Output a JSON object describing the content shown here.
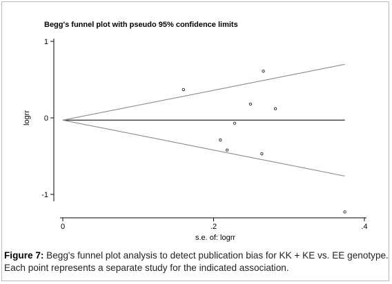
{
  "chart_data": {
    "type": "scatter",
    "title": "Begg's funnel plot with pseudo 95% confidence limits",
    "xlabel": "s.e. of: logrr",
    "ylabel": "logrr",
    "xlim": [
      0,
      0.4
    ],
    "ylim": [
      -1,
      1
    ],
    "x_ticks": [
      0,
      0.2,
      0.4
    ],
    "x_tick_labels": [
      "0",
      ".2",
      ".4"
    ],
    "y_ticks": [
      1,
      0,
      -1
    ],
    "y_tick_labels": [
      "1",
      "0",
      "-1"
    ],
    "grid": false,
    "pooled_estimate": -0.03,
    "confidence_limits": {
      "x": [
        0,
        0.374
      ],
      "upper": [
        -0.03,
        0.7
      ],
      "lower": [
        -0.03,
        -0.76
      ]
    },
    "points": [
      {
        "x": 0.16,
        "y": 0.37
      },
      {
        "x": 0.249,
        "y": 0.18
      },
      {
        "x": 0.266,
        "y": 0.61
      },
      {
        "x": 0.282,
        "y": 0.12
      },
      {
        "x": 0.228,
        "y": -0.07
      },
      {
        "x": 0.209,
        "y": -0.29
      },
      {
        "x": 0.218,
        "y": -0.42
      },
      {
        "x": 0.264,
        "y": -0.47
      },
      {
        "x": 0.374,
        "y": -1.23
      }
    ]
  },
  "caption": {
    "label": "Figure 7:",
    "text": " Begg's funnel plot analysis to detect publication bias for KK + KE vs. EE genotype. Each point represents a separate study for the indicated association."
  }
}
